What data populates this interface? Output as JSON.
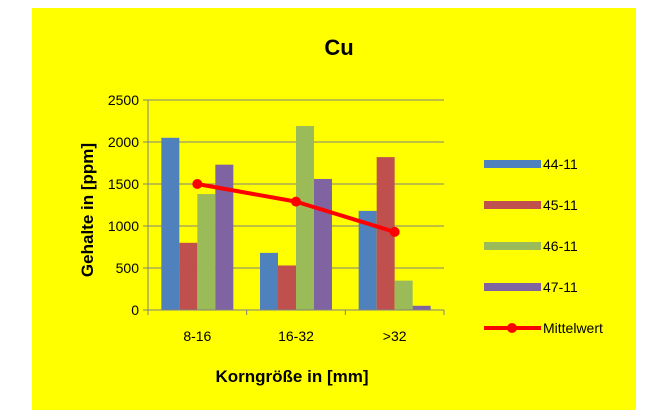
{
  "chart_data": {
    "type": "bar",
    "title": "Cu",
    "xlabel": "Korngröße in [mm]",
    "ylabel": "Gehalte in [ppm]",
    "categories": [
      "8-16",
      "16-32",
      ">32"
    ],
    "ylim": [
      0,
      2500
    ],
    "yticks": [
      0,
      500,
      1000,
      1500,
      2000,
      2500
    ],
    "grid": true,
    "legend_position": "right",
    "background_color": "#FFFF00",
    "series": [
      {
        "name": "44-11",
        "type": "bar",
        "color": "#4F81BD",
        "values": [
          2050,
          680,
          1180
        ]
      },
      {
        "name": "45-11",
        "type": "bar",
        "color": "#C0504D",
        "values": [
          800,
          530,
          1820
        ]
      },
      {
        "name": "46-11",
        "type": "bar",
        "color": "#9BBB59",
        "values": [
          1380,
          2190,
          350
        ]
      },
      {
        "name": "47-11",
        "type": "bar",
        "color": "#8064A2",
        "values": [
          1730,
          1560,
          50
        ]
      },
      {
        "name": "Mittelwert",
        "type": "line",
        "color": "#FF0000",
        "values": [
          1500,
          1290,
          930
        ]
      }
    ]
  }
}
